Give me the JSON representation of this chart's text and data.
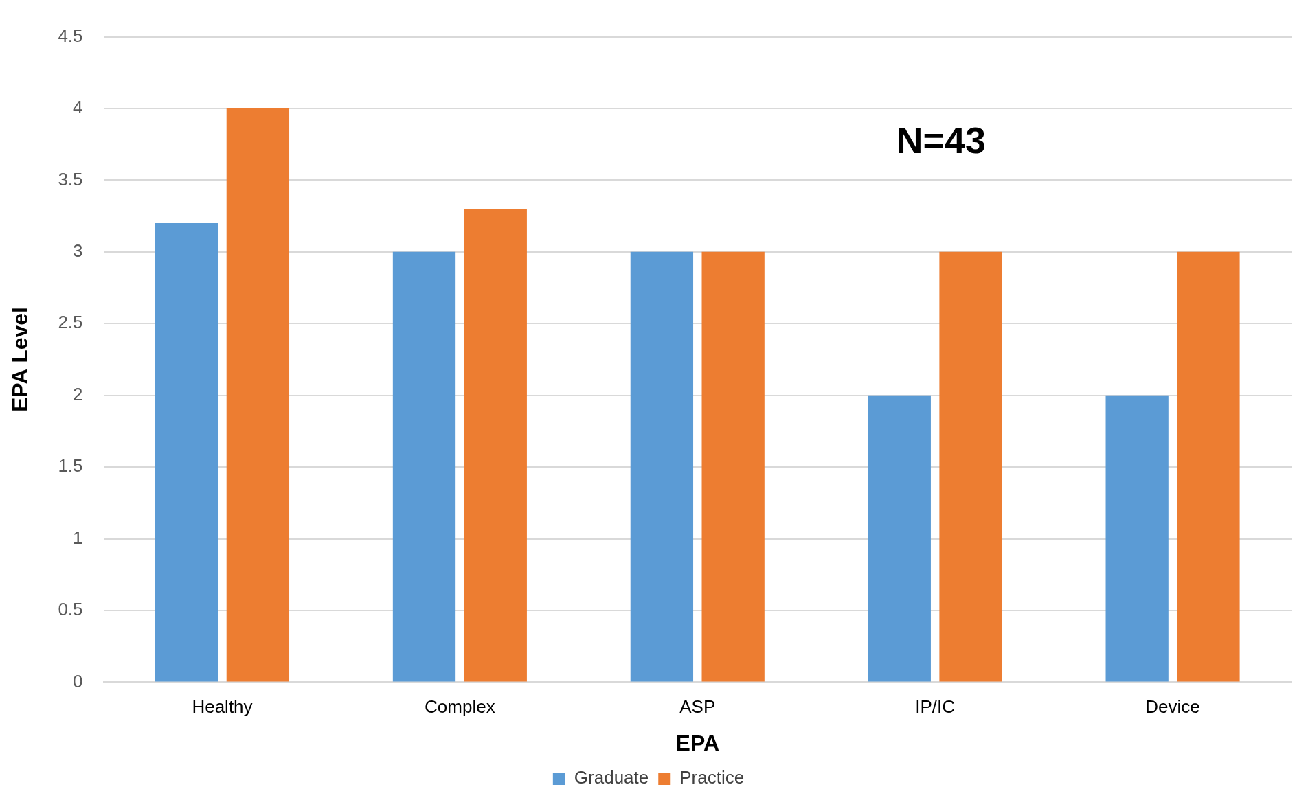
{
  "chart_data": {
    "type": "bar",
    "xlabel": "EPA",
    "ylabel": "EPA Level",
    "categories": [
      "Healthy",
      "Complex",
      "ASP",
      "IP/IC",
      "Device"
    ],
    "series": [
      {
        "name": "Graduate",
        "color": "#5b9bd5",
        "values": [
          3.2,
          3,
          3,
          2,
          2
        ]
      },
      {
        "name": "Practice",
        "color": "#ed7d31",
        "values": [
          4,
          3.3,
          3,
          3,
          3
        ]
      }
    ],
    "ylim": [
      0,
      4.5
    ],
    "yticks": [
      0,
      0.5,
      1,
      1.5,
      2,
      2.5,
      3,
      3.5,
      4,
      4.5
    ],
    "grid": "y",
    "legend": "bottom",
    "annotations": [
      "N=43"
    ]
  }
}
